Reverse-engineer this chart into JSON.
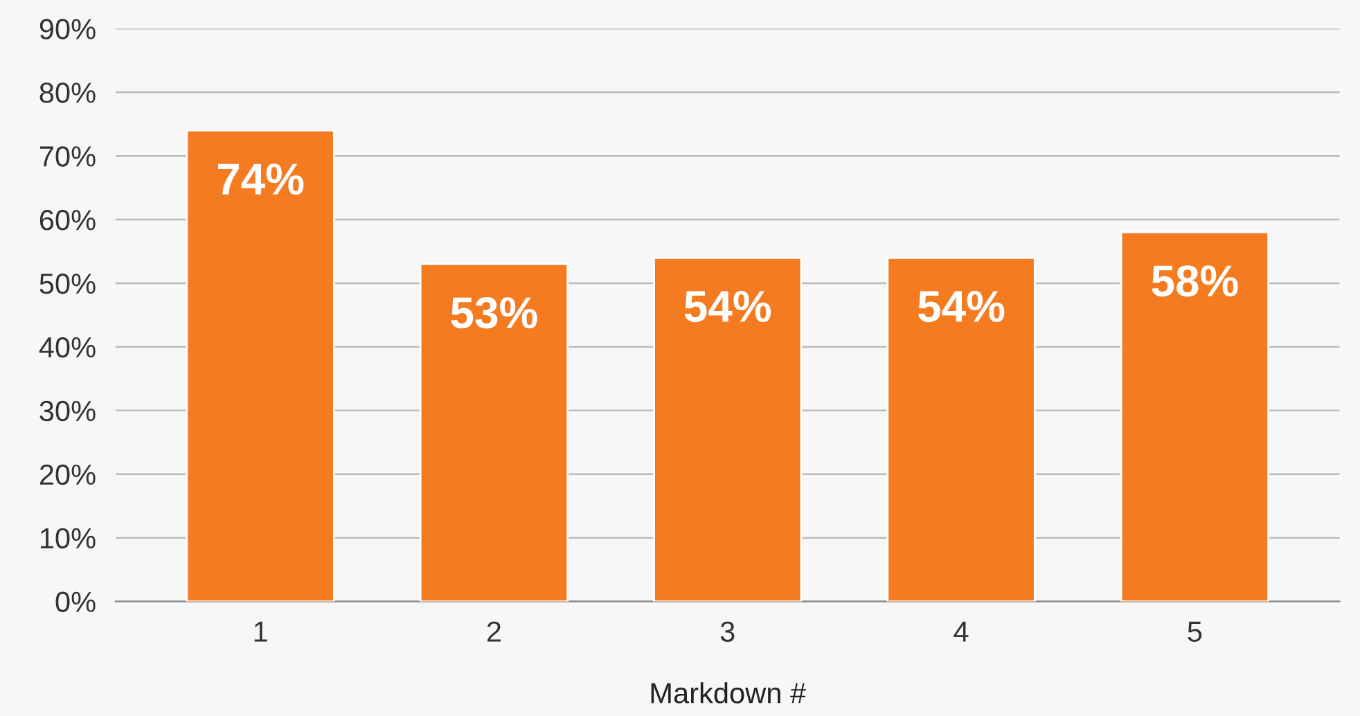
{
  "chart_data": {
    "type": "bar",
    "xlabel": "Markdown #",
    "categories": [
      "1",
      "2",
      "3",
      "4",
      "5"
    ],
    "values": [
      74,
      53,
      54,
      54,
      58
    ],
    "value_labels": [
      "74%",
      "53%",
      "54%",
      "54%",
      "58%"
    ],
    "color": "#f47b20",
    "ylim": [
      0,
      90
    ],
    "yticks": [
      {
        "value": 0,
        "label": "0%"
      },
      {
        "value": 10,
        "label": "10%"
      },
      {
        "value": 20,
        "label": "20%"
      },
      {
        "value": 30,
        "label": "30%"
      },
      {
        "value": 40,
        "label": "40%"
      },
      {
        "value": 50,
        "label": "50%"
      },
      {
        "value": 60,
        "label": "60%"
      },
      {
        "value": 70,
        "label": "70%"
      },
      {
        "value": 80,
        "label": "80%"
      },
      {
        "value": 90,
        "label": "90%"
      }
    ],
    "grid": "y"
  }
}
